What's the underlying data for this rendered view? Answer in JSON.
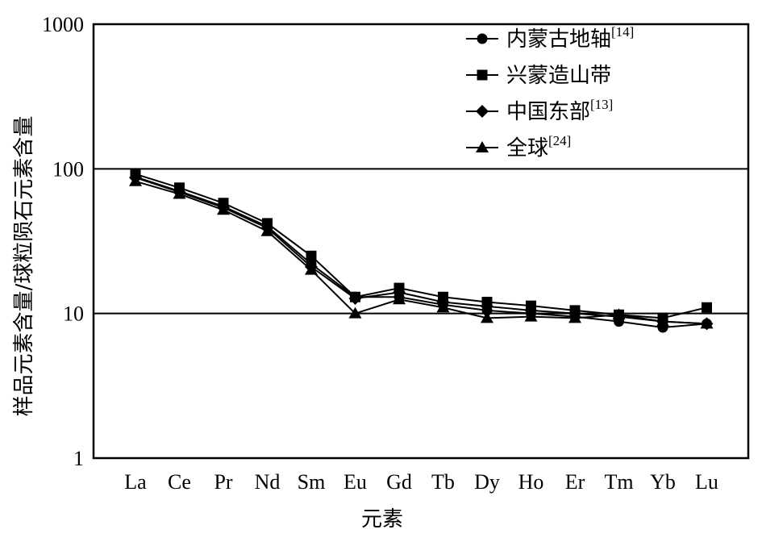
{
  "chart_data": {
    "type": "line",
    "title": "",
    "xlabel": "元素",
    "ylabel": "样品元素含量/球粒陨石元素含量",
    "yscale": "log",
    "ylim": [
      1,
      1000
    ],
    "yticks": [
      1,
      10,
      100,
      1000
    ],
    "ytick_labels": [
      "1",
      "10",
      "100",
      "1000"
    ],
    "grid_y": [
      10,
      100
    ],
    "legend_position": "top-right",
    "categories": [
      "La",
      "Ce",
      "Pr",
      "Nd",
      "Sm",
      "Eu",
      "Gd",
      "Tb",
      "Dy",
      "Ho",
      "Er",
      "Tm",
      "Yb",
      "Lu"
    ],
    "series": [
      {
        "name": "内蒙古地轴",
        "ref": "[14]",
        "marker": "circle",
        "values": [
          88,
          70,
          55,
          40,
          22,
          13,
          13,
          11.5,
          10.5,
          10,
          9.5,
          8.8,
          8,
          8.5
        ]
      },
      {
        "name": "兴蒙造山带",
        "ref": "",
        "marker": "square",
        "values": [
          92,
          74,
          58,
          42,
          25,
          13,
          15,
          13,
          12,
          11.3,
          10.5,
          9.8,
          9.3,
          11
        ]
      },
      {
        "name": "中国东部",
        "ref": "[13]",
        "marker": "diamond",
        "values": [
          87,
          69,
          54,
          39,
          21,
          12.7,
          14,
          12,
          11.2,
          10.5,
          10,
          9.5,
          8.8,
          8.5
        ]
      },
      {
        "name": "全球",
        "ref": "[24]",
        "marker": "triangle",
        "values": [
          82,
          67,
          52,
          37,
          20,
          10,
          12.5,
          11,
          9.3,
          9.5,
          9.3,
          9.8,
          8.8,
          8.5
        ]
      }
    ]
  }
}
